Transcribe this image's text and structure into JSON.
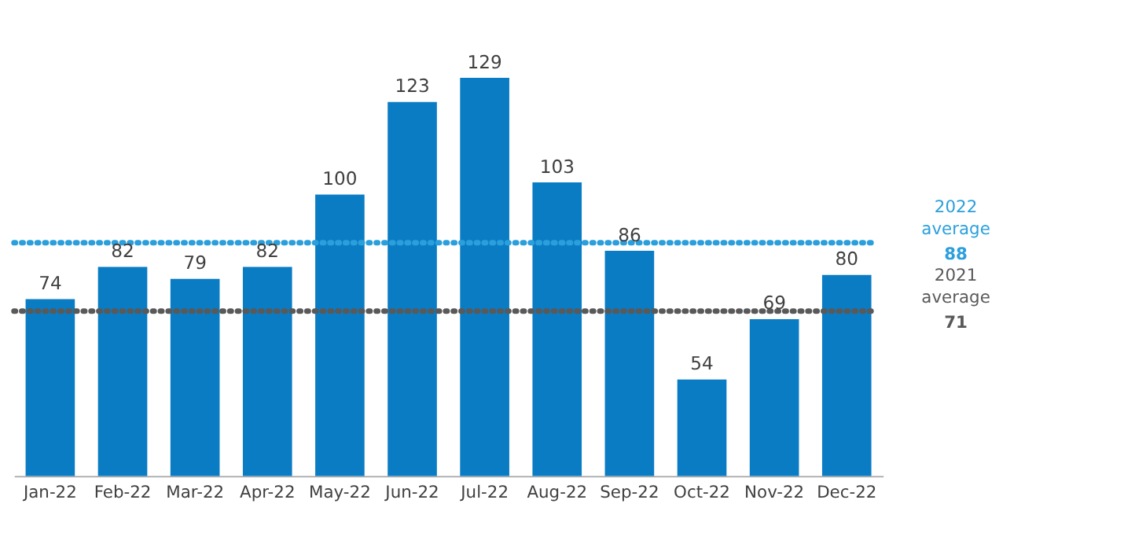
{
  "chart_data": {
    "type": "bar",
    "categories": [
      "Jan-22",
      "Feb-22",
      "Mar-22",
      "Apr-22",
      "May-22",
      "Jun-22",
      "Jul-22",
      "Aug-22",
      "Sep-22",
      "Oct-22",
      "Nov-22",
      "Dec-22"
    ],
    "values": [
      74,
      82,
      79,
      82,
      100,
      123,
      129,
      103,
      86,
      54,
      69,
      80
    ],
    "color": "#0a7cc4",
    "data_labels": true,
    "ylim": [
      30,
      129
    ],
    "grid": false,
    "tick_labels": "x",
    "ref_lines": [
      {
        "axis": "y",
        "value": 88,
        "label": "2022 average 88",
        "color": "#2b9fdc",
        "line_style": "dotted"
      },
      {
        "axis": "y",
        "value": 71,
        "label": "2021 average 71",
        "color": "#595959",
        "line_style": "dotted"
      }
    ]
  }
}
